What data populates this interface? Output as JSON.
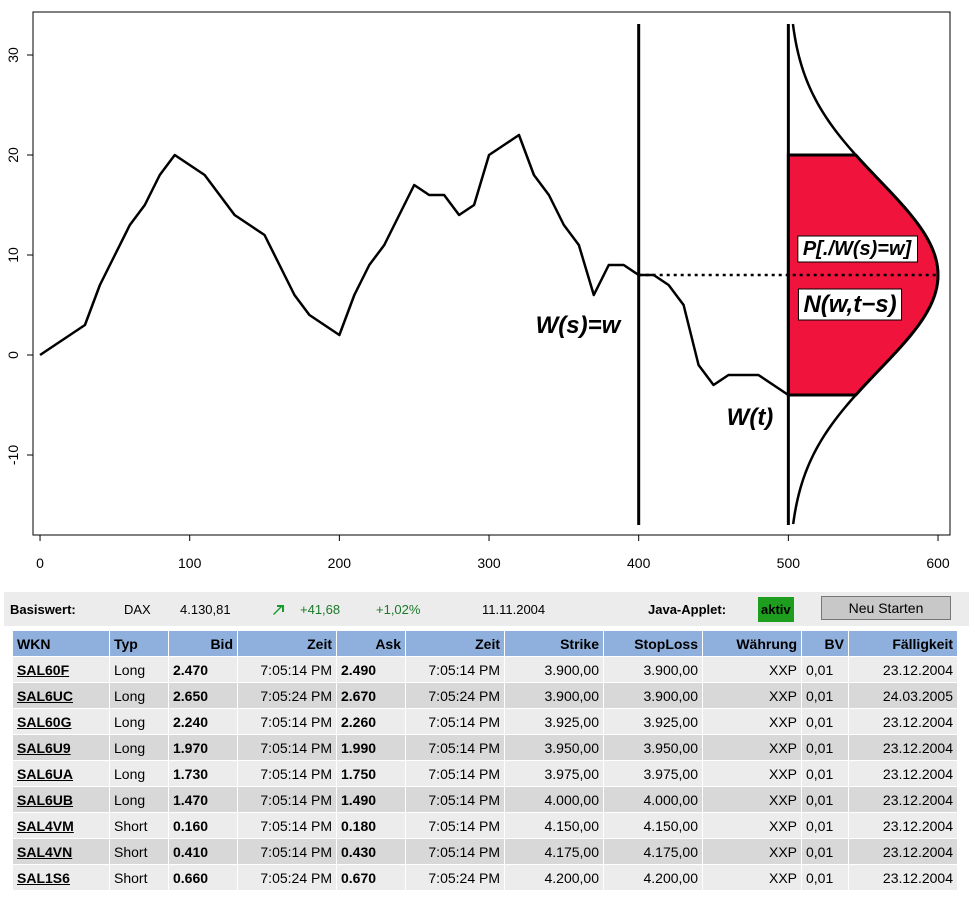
{
  "chart_data": {
    "type": "line",
    "x": [
      0,
      10,
      20,
      30,
      40,
      50,
      60,
      70,
      80,
      90,
      100,
      110,
      120,
      130,
      140,
      150,
      160,
      170,
      180,
      190,
      200,
      210,
      220,
      230,
      240,
      250,
      260,
      270,
      280,
      290,
      300,
      310,
      320,
      330,
      340,
      350,
      360,
      370,
      380,
      390,
      400,
      410,
      420,
      430,
      440,
      450,
      460,
      470,
      480,
      490,
      500
    ],
    "series": [
      {
        "color": "#000000",
        "values": [
          0,
          1,
          2,
          3,
          7,
          10,
          13,
          15,
          18,
          20,
          19,
          18,
          16,
          14,
          13,
          12,
          9,
          6,
          4,
          3,
          2,
          6,
          9,
          11,
          14,
          17,
          16,
          16,
          14,
          15,
          20,
          21,
          22,
          18,
          16,
          13,
          11,
          6,
          9,
          9,
          8,
          8,
          7,
          5,
          -1,
          -3,
          -2,
          -2,
          -2,
          -3,
          -4
        ]
      }
    ],
    "xlim": [
      -4.7,
      608
    ],
    "ylim": [
      -18,
      34.3
    ],
    "xticks": [
      0,
      100,
      200,
      300,
      400,
      500,
      600
    ],
    "yticks": [
      -10,
      0,
      10,
      20,
      30
    ],
    "vlines": [
      400,
      500
    ],
    "dotted_y": 8,
    "density": {
      "x_origin": 500,
      "mean": 8,
      "sd": 9.5,
      "height": 100,
      "shade": [
        -4,
        20
      ],
      "color": "#f0133c"
    },
    "annotations": [
      "W(s)=w",
      "W(t)",
      "P[./W(s)=w]",
      "N(w,t−s)"
    ]
  },
  "infobar": {
    "basiswert_label": "Basiswert:",
    "index": "DAX",
    "level": "4.130,81",
    "change": "+41,68",
    "change_pct": "+1,02%",
    "date": "11.11.2004",
    "applet_label": "Java-Applet:",
    "applet_status": "aktiv",
    "button": "Neu Starten"
  },
  "table": {
    "columns": [
      "WKN",
      "Typ",
      "Bid",
      "Zeit",
      "Ask",
      "Zeit",
      "Strike",
      "StopLoss",
      "Währung",
      "BV",
      "Fälligkeit"
    ],
    "rows": [
      [
        "SAL60F",
        "Long",
        "2.470",
        "7:05:14 PM",
        "2.490",
        "7:05:14 PM",
        "3.900,00",
        "3.900,00",
        "XXP",
        "0,01",
        "23.12.2004"
      ],
      [
        "SAL6UC",
        "Long",
        "2.650",
        "7:05:24 PM",
        "2.670",
        "7:05:24 PM",
        "3.900,00",
        "3.900,00",
        "XXP",
        "0,01",
        "24.03.2005"
      ],
      [
        "SAL60G",
        "Long",
        "2.240",
        "7:05:14 PM",
        "2.260",
        "7:05:14 PM",
        "3.925,00",
        "3.925,00",
        "XXP",
        "0,01",
        "23.12.2004"
      ],
      [
        "SAL6U9",
        "Long",
        "1.970",
        "7:05:14 PM",
        "1.990",
        "7:05:14 PM",
        "3.950,00",
        "3.950,00",
        "XXP",
        "0,01",
        "23.12.2004"
      ],
      [
        "SAL6UA",
        "Long",
        "1.730",
        "7:05:14 PM",
        "1.750",
        "7:05:14 PM",
        "3.975,00",
        "3.975,00",
        "XXP",
        "0,01",
        "23.12.2004"
      ],
      [
        "SAL6UB",
        "Long",
        "1.470",
        "7:05:14 PM",
        "1.490",
        "7:05:14 PM",
        "4.000,00",
        "4.000,00",
        "XXP",
        "0,01",
        "23.12.2004"
      ],
      [
        "SAL4VM",
        "Short",
        "0.160",
        "7:05:14 PM",
        "0.180",
        "7:05:14 PM",
        "4.150,00",
        "4.150,00",
        "XXP",
        "0,01",
        "23.12.2004"
      ],
      [
        "SAL4VN",
        "Short",
        "0.410",
        "7:05:14 PM",
        "0.430",
        "7:05:14 PM",
        "4.175,00",
        "4.175,00",
        "XXP",
        "0,01",
        "23.12.2004"
      ],
      [
        "SAL1S6",
        "Short",
        "0.660",
        "7:05:24 PM",
        "0.670",
        "7:05:24 PM",
        "4.200,00",
        "4.200,00",
        "XXP",
        "0,01",
        "23.12.2004"
      ]
    ]
  }
}
